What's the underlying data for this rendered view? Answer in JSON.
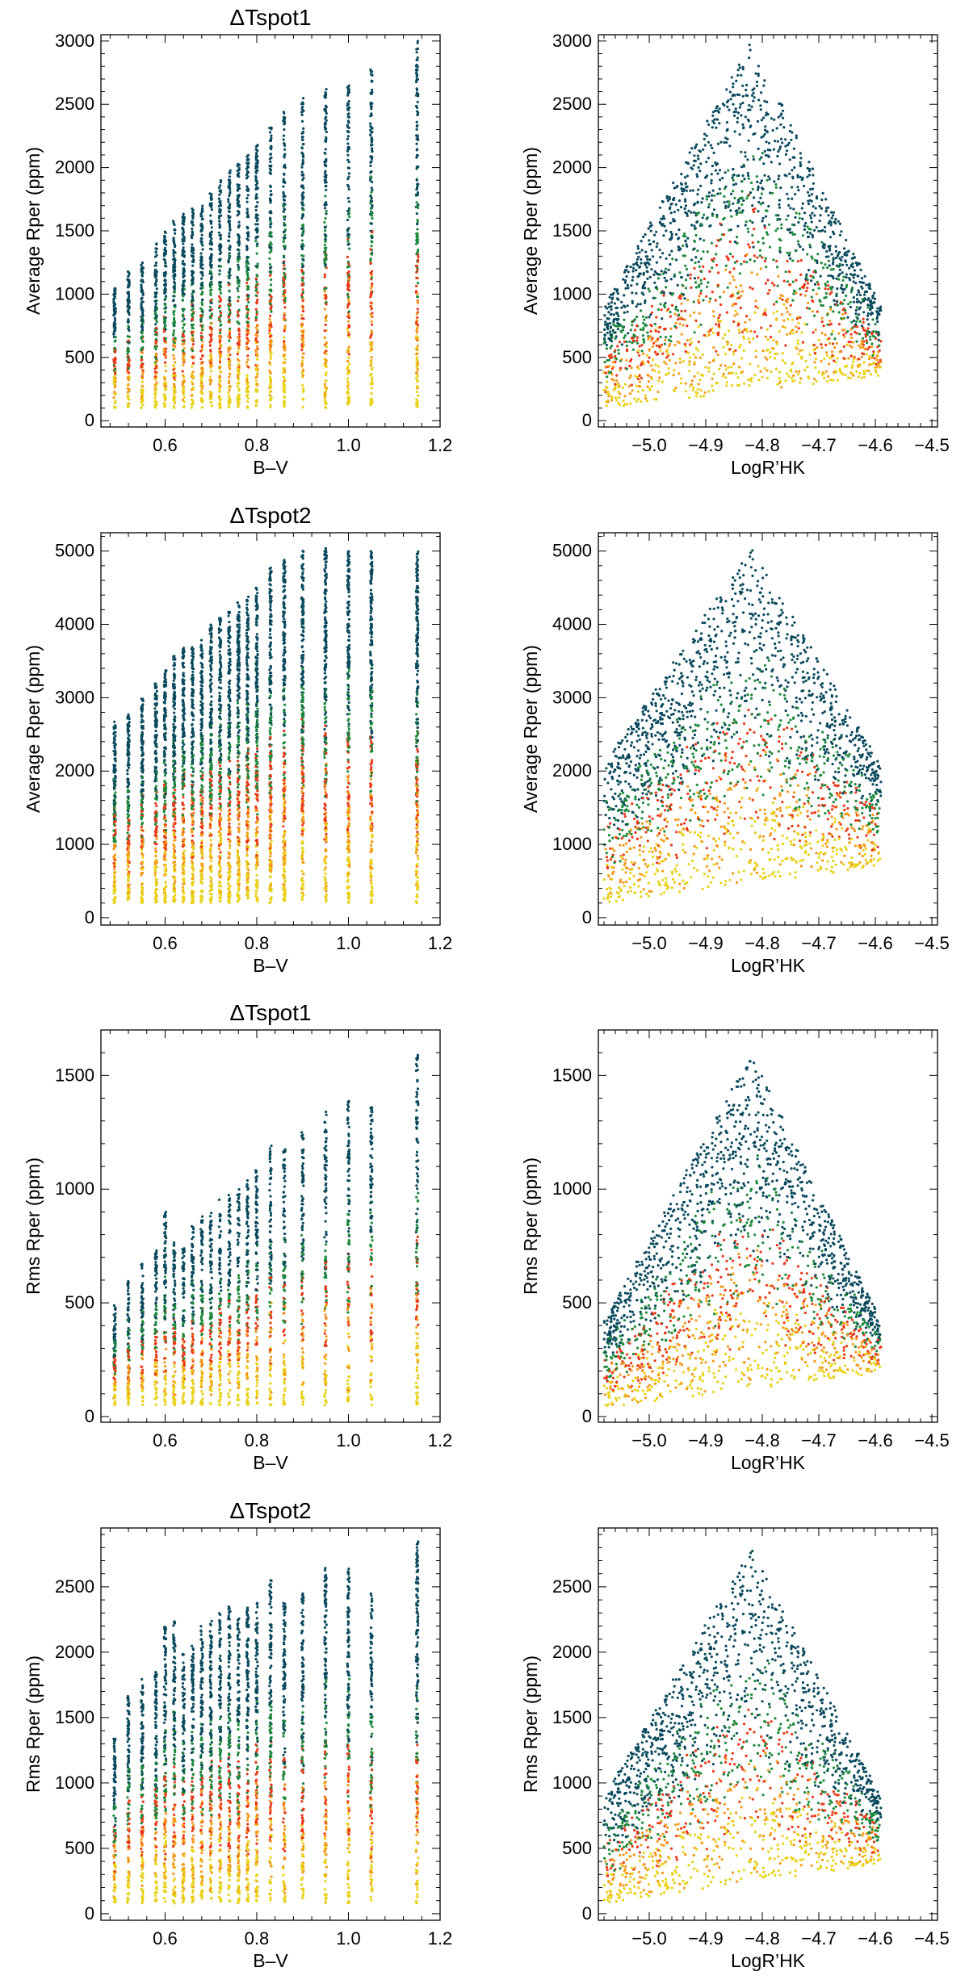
{
  "figure": {
    "colors": {
      "dark": "#0b4a5e",
      "green": "#1e8a3c",
      "red": "#e8391a",
      "orange": "#f39a1c",
      "yellow": "#e8d21c",
      "axis": "#000000",
      "background": "#ffffff"
    }
  },
  "chart_data": [
    {
      "type": "scatter",
      "title": "ΔTspot1",
      "xlabel": "B–V",
      "ylabel": "Average Rper (ppm)",
      "xlim": [
        0.46,
        1.2
      ],
      "ylim": [
        -50,
        3050
      ],
      "xticks": [
        0.6,
        0.8,
        1.0,
        1.2
      ],
      "xtick_labels": [
        "0.6",
        "0.8",
        "1.0",
        "1.2"
      ],
      "yticks": [
        0,
        500,
        1000,
        1500,
        2000,
        2500,
        3000
      ],
      "ytick_labels": [
        "0",
        "500",
        "1000",
        "1500",
        "2000",
        "2500",
        "3000"
      ],
      "x_columns": [
        0.49,
        0.52,
        0.55,
        0.58,
        0.6,
        0.62,
        0.64,
        0.66,
        0.68,
        0.7,
        0.72,
        0.74,
        0.76,
        0.78,
        0.8,
        0.83,
        0.86,
        0.9,
        0.95,
        1.0,
        1.05,
        1.15
      ],
      "column_max": [
        1050,
        1180,
        1280,
        1400,
        1500,
        1580,
        1640,
        1680,
        1720,
        1800,
        1900,
        1980,
        2050,
        2100,
        2200,
        2350,
        2450,
        2550,
        2620,
        2650,
        2820,
        3000
      ],
      "min_value": 100,
      "color_note": "colored by LogR'HK activity: yellow (low) → orange → red → green → dark teal (high)"
    },
    {
      "type": "scatter",
      "title": "",
      "xlabel": "LogR’HK",
      "ylabel": "Average Rper (ppm)",
      "xlim": [
        -5.09,
        -4.49
      ],
      "ylim": [
        -50,
        3050
      ],
      "xticks": [
        -5.0,
        -4.9,
        -4.8,
        -4.7,
        -4.6,
        -4.5
      ],
      "xtick_labels": [
        "−5.0",
        "−4.9",
        "−4.8",
        "−4.7",
        "−4.6",
        "−4.5"
      ],
      "yticks": [
        0,
        500,
        1000,
        1500,
        2000,
        2500,
        3000
      ],
      "ytick_labels": [
        "0",
        "500",
        "1000",
        "1500",
        "2000",
        "2500",
        "3000"
      ],
      "x_range": [
        -5.08,
        -4.59
      ],
      "peak_x": -4.82,
      "edge_max": 900,
      "peak_max": 3000,
      "min_value": 100,
      "bottom_rise": 250
    },
    {
      "type": "scatter",
      "title": "ΔTspot2",
      "xlabel": "B–V",
      "ylabel": "Average Rper (ppm)",
      "xlim": [
        0.46,
        1.2
      ],
      "ylim": [
        -100,
        5250
      ],
      "xticks": [
        0.6,
        0.8,
        1.0,
        1.2
      ],
      "xtick_labels": [
        "0.6",
        "0.8",
        "1.0",
        "1.2"
      ],
      "yticks": [
        0,
        1000,
        2000,
        3000,
        4000,
        5000
      ],
      "ytick_labels": [
        "0",
        "1000",
        "2000",
        "3000",
        "4000",
        "5000"
      ],
      "x_columns": [
        0.49,
        0.52,
        0.55,
        0.58,
        0.6,
        0.62,
        0.64,
        0.66,
        0.68,
        0.7,
        0.72,
        0.74,
        0.76,
        0.78,
        0.8,
        0.83,
        0.86,
        0.9,
        0.95,
        1.0,
        1.05,
        1.15
      ],
      "column_max": [
        2700,
        2800,
        3000,
        3200,
        3400,
        3600,
        3700,
        3700,
        3800,
        4000,
        4100,
        4200,
        4300,
        4400,
        4500,
        4800,
        4900,
        5000,
        5050,
        5000,
        5000,
        5000
      ],
      "min_value": 200,
      "color_note": "colored by LogR'HK activity"
    },
    {
      "type": "scatter",
      "title": "",
      "xlabel": "LogR’HK",
      "ylabel": "Average Rper (ppm)",
      "xlim": [
        -5.09,
        -4.49
      ],
      "ylim": [
        -100,
        5250
      ],
      "xticks": [
        -5.0,
        -4.9,
        -4.8,
        -4.7,
        -4.6,
        -4.5
      ],
      "xtick_labels": [
        "−5.0",
        "−4.9",
        "−4.8",
        "−4.7",
        "−4.6",
        "−4.5"
      ],
      "yticks": [
        0,
        1000,
        2000,
        3000,
        4000,
        5000
      ],
      "ytick_labels": [
        "0",
        "1000",
        "2000",
        "3000",
        "4000",
        "5000"
      ],
      "x_range": [
        -5.08,
        -4.59
      ],
      "peak_x": -4.82,
      "edge_max": 2100,
      "peak_max": 5050,
      "min_value": 200,
      "bottom_rise": 500
    },
    {
      "type": "scatter",
      "title": "ΔTspot1",
      "xlabel": "B–V",
      "ylabel": "Rms Rper (ppm)",
      "xlim": [
        0.46,
        1.2
      ],
      "ylim": [
        -25,
        1700
      ],
      "xticks": [
        0.6,
        0.8,
        1.0,
        1.2
      ],
      "xtick_labels": [
        "0.6",
        "0.8",
        "1.0",
        "1.2"
      ],
      "yticks": [
        0,
        500,
        1000,
        1500
      ],
      "ytick_labels": [
        "0",
        "500",
        "1000",
        "1500"
      ],
      "x_columns": [
        0.49,
        0.52,
        0.55,
        0.58,
        0.6,
        0.62,
        0.64,
        0.66,
        0.68,
        0.7,
        0.72,
        0.74,
        0.76,
        0.78,
        0.8,
        0.83,
        0.86,
        0.9,
        0.95,
        1.0,
        1.05,
        1.15
      ],
      "column_max": [
        490,
        600,
        680,
        730,
        900,
        770,
        740,
        850,
        880,
        900,
        960,
        980,
        1000,
        1050,
        1100,
        1200,
        1180,
        1270,
        1340,
        1390,
        1360,
        1600
      ],
      "min_value": 50,
      "color_note": "colored by LogR'HK activity"
    },
    {
      "type": "scatter",
      "title": "",
      "xlabel": "LogR’HK",
      "ylabel": "Rms Rper (ppm)",
      "xlim": [
        -5.09,
        -4.49
      ],
      "ylim": [
        -25,
        1700
      ],
      "xticks": [
        -5.0,
        -4.9,
        -4.8,
        -4.7,
        -4.6,
        -4.5
      ],
      "xtick_labels": [
        "−5.0",
        "−4.9",
        "−4.8",
        "−4.7",
        "−4.6",
        "−4.5"
      ],
      "yticks": [
        0,
        500,
        1000,
        1500
      ],
      "ytick_labels": [
        "0",
        "500",
        "1000",
        "1500"
      ],
      "x_range": [
        -5.08,
        -4.59
      ],
      "peak_x": -4.82,
      "edge_max": 420,
      "peak_max": 1600,
      "min_value": 40,
      "bottom_rise": 150
    },
    {
      "type": "scatter",
      "title": "ΔTspot2",
      "xlabel": "B–V",
      "ylabel": "Rms Rper (ppm)",
      "xlim": [
        0.46,
        1.2
      ],
      "ylim": [
        -50,
        2950
      ],
      "xticks": [
        0.6,
        0.8,
        1.0,
        1.2
      ],
      "xtick_labels": [
        "0.6",
        "0.8",
        "1.0",
        "1.2"
      ],
      "yticks": [
        0,
        500,
        1000,
        1500,
        2000,
        2500
      ],
      "ytick_labels": [
        "0",
        "500",
        "1000",
        "1500",
        "2000",
        "2500"
      ],
      "x_columns": [
        0.49,
        0.52,
        0.55,
        0.58,
        0.6,
        0.62,
        0.64,
        0.66,
        0.68,
        0.7,
        0.72,
        0.74,
        0.76,
        0.78,
        0.8,
        0.83,
        0.86,
        0.9,
        0.95,
        1.0,
        1.05,
        1.15
      ],
      "column_max": [
        1350,
        1700,
        1800,
        1850,
        2200,
        2250,
        2000,
        2050,
        2200,
        2250,
        2300,
        2350,
        2300,
        2350,
        2400,
        2550,
        2400,
        2450,
        2650,
        2650,
        2450,
        2850
      ],
      "min_value": 80,
      "color_note": "colored by LogR'HK activity"
    },
    {
      "type": "scatter",
      "title": "",
      "xlabel": "LogR’HK",
      "ylabel": "Rms Rper (ppm)",
      "xlim": [
        -5.09,
        -4.49
      ],
      "ylim": [
        -50,
        2950
      ],
      "xticks": [
        -5.0,
        -4.9,
        -4.8,
        -4.7,
        -4.6,
        -4.5
      ],
      "xtick_labels": [
        "−5.0",
        "−4.9",
        "−4.8",
        "−4.7",
        "−4.6",
        "−4.5"
      ],
      "yticks": [
        0,
        500,
        1000,
        1500,
        2000,
        2500
      ],
      "ytick_labels": [
        "0",
        "500",
        "1000",
        "1500",
        "2000",
        "2500"
      ],
      "x_range": [
        -5.08,
        -4.59
      ],
      "peak_x": -4.82,
      "edge_max": 900,
      "peak_max": 2800,
      "min_value": 80,
      "bottom_rise": 300
    }
  ]
}
